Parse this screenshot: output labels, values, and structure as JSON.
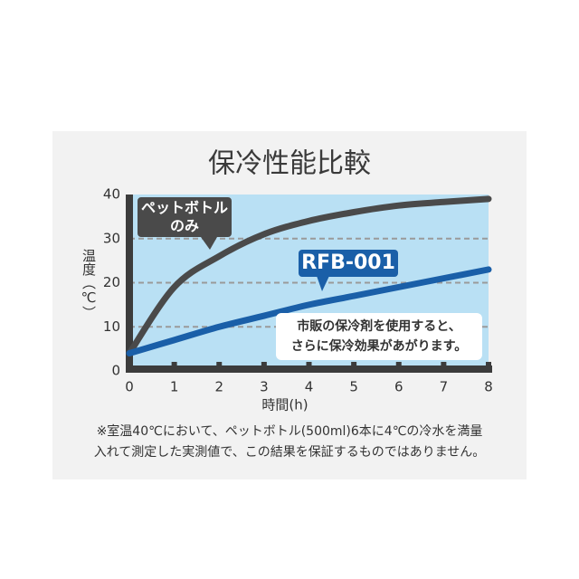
{
  "chart_data": {
    "type": "line",
    "title": "保冷性能比較",
    "x_label": "時間(h)",
    "y_label": "温度（℃）",
    "x": [
      0,
      1,
      2,
      3,
      4,
      5,
      6,
      7,
      8
    ],
    "series": [
      {
        "name": "ペットボトルのみ",
        "color": "#4a4a4a",
        "values": [
          4,
          19,
          26,
          31,
          34,
          36,
          37.5,
          38.3,
          39
        ]
      },
      {
        "name": "RFB-001",
        "color": "#1a5fa8",
        "values": [
          4,
          7,
          10,
          12.5,
          15,
          17,
          19,
          21,
          23
        ]
      }
    ],
    "xlim": [
      0,
      8
    ],
    "xticks": [
      0,
      1,
      2,
      3,
      4,
      5,
      6,
      7,
      8
    ],
    "ylim": [
      0,
      40
    ],
    "yticks": [
      0,
      10,
      20,
      30,
      40
    ],
    "grid": true,
    "annotation": [
      "市販の保冷剤を使用すると、",
      "さらに保冷効果があがります。"
    ],
    "footnote": [
      "※室温40℃において、ペットボトル(500ml)6本に4℃の冷水を満量",
      "入れて測定した実測値で、この結果を保証するものではありません。"
    ]
  }
}
